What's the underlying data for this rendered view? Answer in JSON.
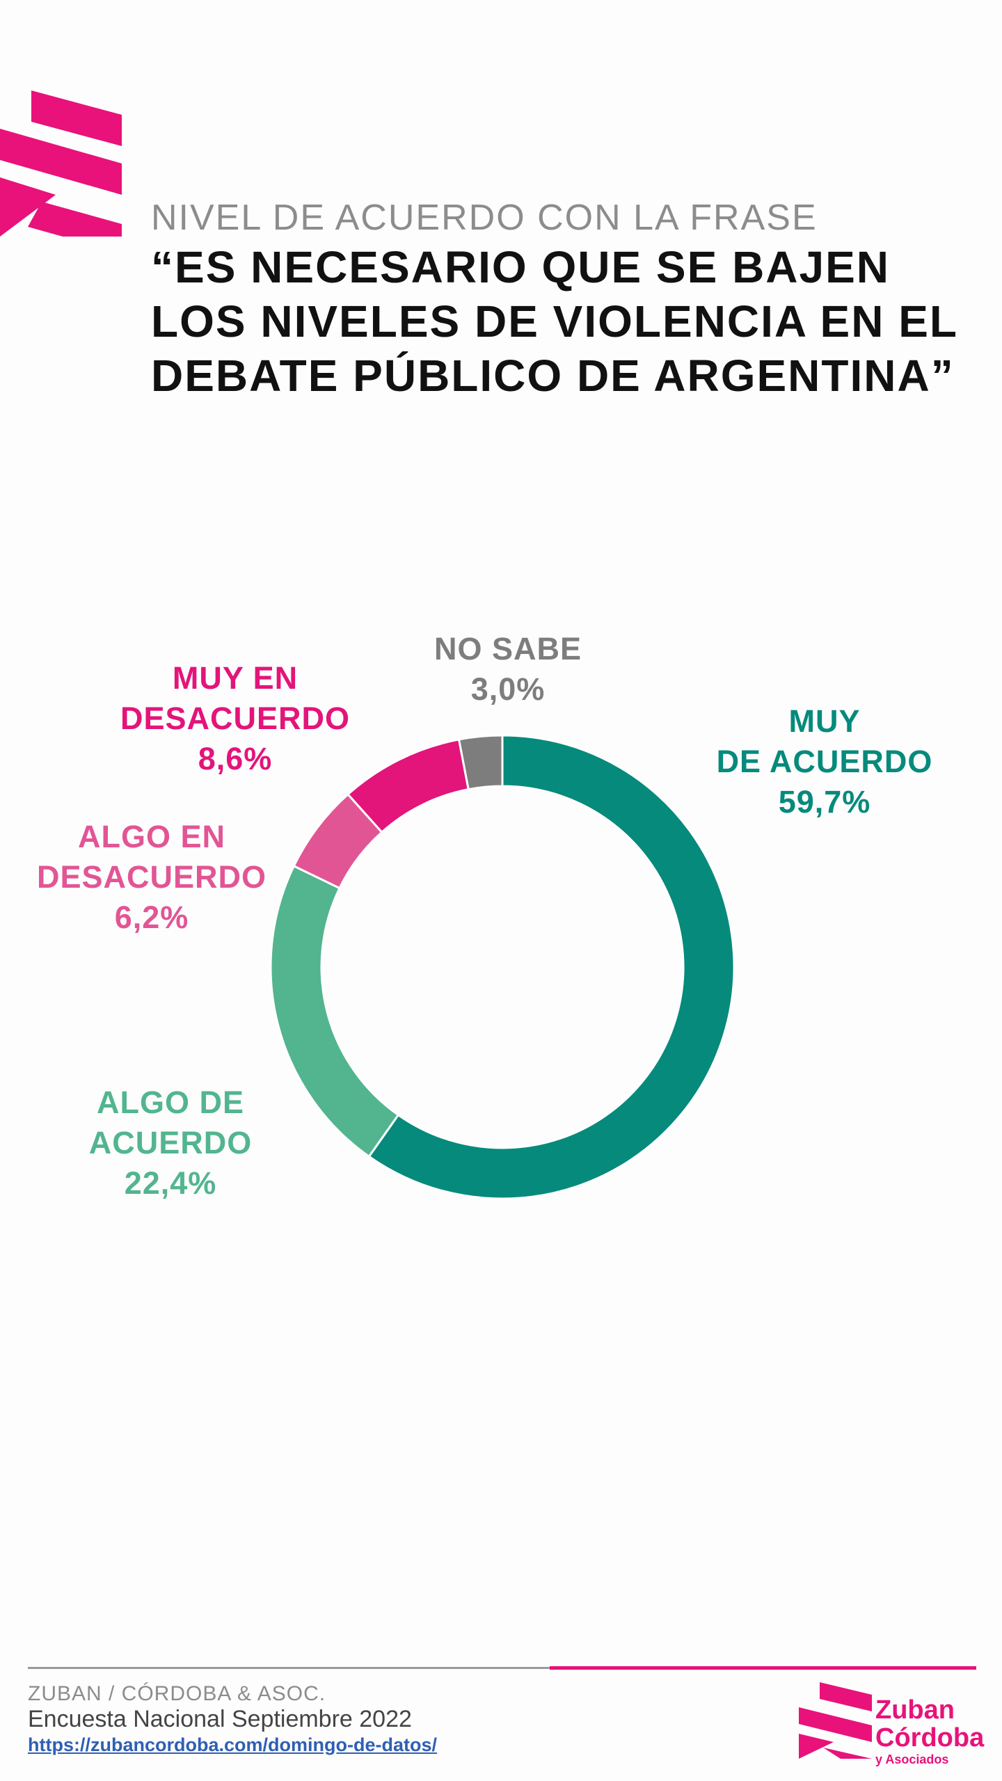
{
  "header": {
    "subtitle": "NIVEL DE ACUERDO CON LA FRASE",
    "title": "“ES NECESARIO QUE SE BAJEN LOS NIVELES DE VIOLENCIA EN EL DEBATE PÚBLICO DE ARGENTINA”"
  },
  "colors": {
    "brand_pink": "#e8127a",
    "muy_de_acuerdo": "#068a7c",
    "algo_de_acuerdo": "#52b58f",
    "algo_en_desacuerdo": "#e25595",
    "muy_en_desacuerdo": "#e3147a",
    "no_sabe": "#7d7d7d"
  },
  "chart_data": {
    "type": "pie",
    "donut": true,
    "title": "“ES NECESARIO QUE SE BAJEN LOS NIVELES DE VIOLENCIA EN EL DEBATE PÚBLICO DE ARGENTINA”",
    "categories": [
      "MUY DE ACUERDO",
      "ALGO DE ACUERDO",
      "ALGO EN DESACUERDO",
      "MUY EN DESACUERDO",
      "NO SABE"
    ],
    "values": [
      59.7,
      22.4,
      6.2,
      8.6,
      3.0
    ],
    "unit": "%",
    "labels": [
      {
        "lines": [
          "MUY",
          "DE ACUERDO"
        ],
        "value": "59,7%"
      },
      {
        "lines": [
          "ALGO DE",
          "ACUERDO"
        ],
        "value": "22,4%"
      },
      {
        "lines": [
          "ALGO EN",
          "DESACUERDO"
        ],
        "value": "6,2%"
      },
      {
        "lines": [
          "MUY EN",
          "DESACUERDO"
        ],
        "value": "8,6%"
      },
      {
        "lines": [
          "NO SABE"
        ],
        "value": "3,0%"
      }
    ],
    "slice_colors": [
      "#068a7c",
      "#52b58f",
      "#e25595",
      "#e3147a",
      "#7d7d7d"
    ]
  },
  "footer": {
    "org": "ZUBAN / CÓRDOBA & ASOC.",
    "survey": "Encuesta Nacional Septiembre 2022",
    "link": "https://zubancordoba.com/domingo-de-datos/"
  },
  "brand": {
    "line1": "Zuban",
    "line2": "Córdoba",
    "line3": "y Asociados"
  }
}
